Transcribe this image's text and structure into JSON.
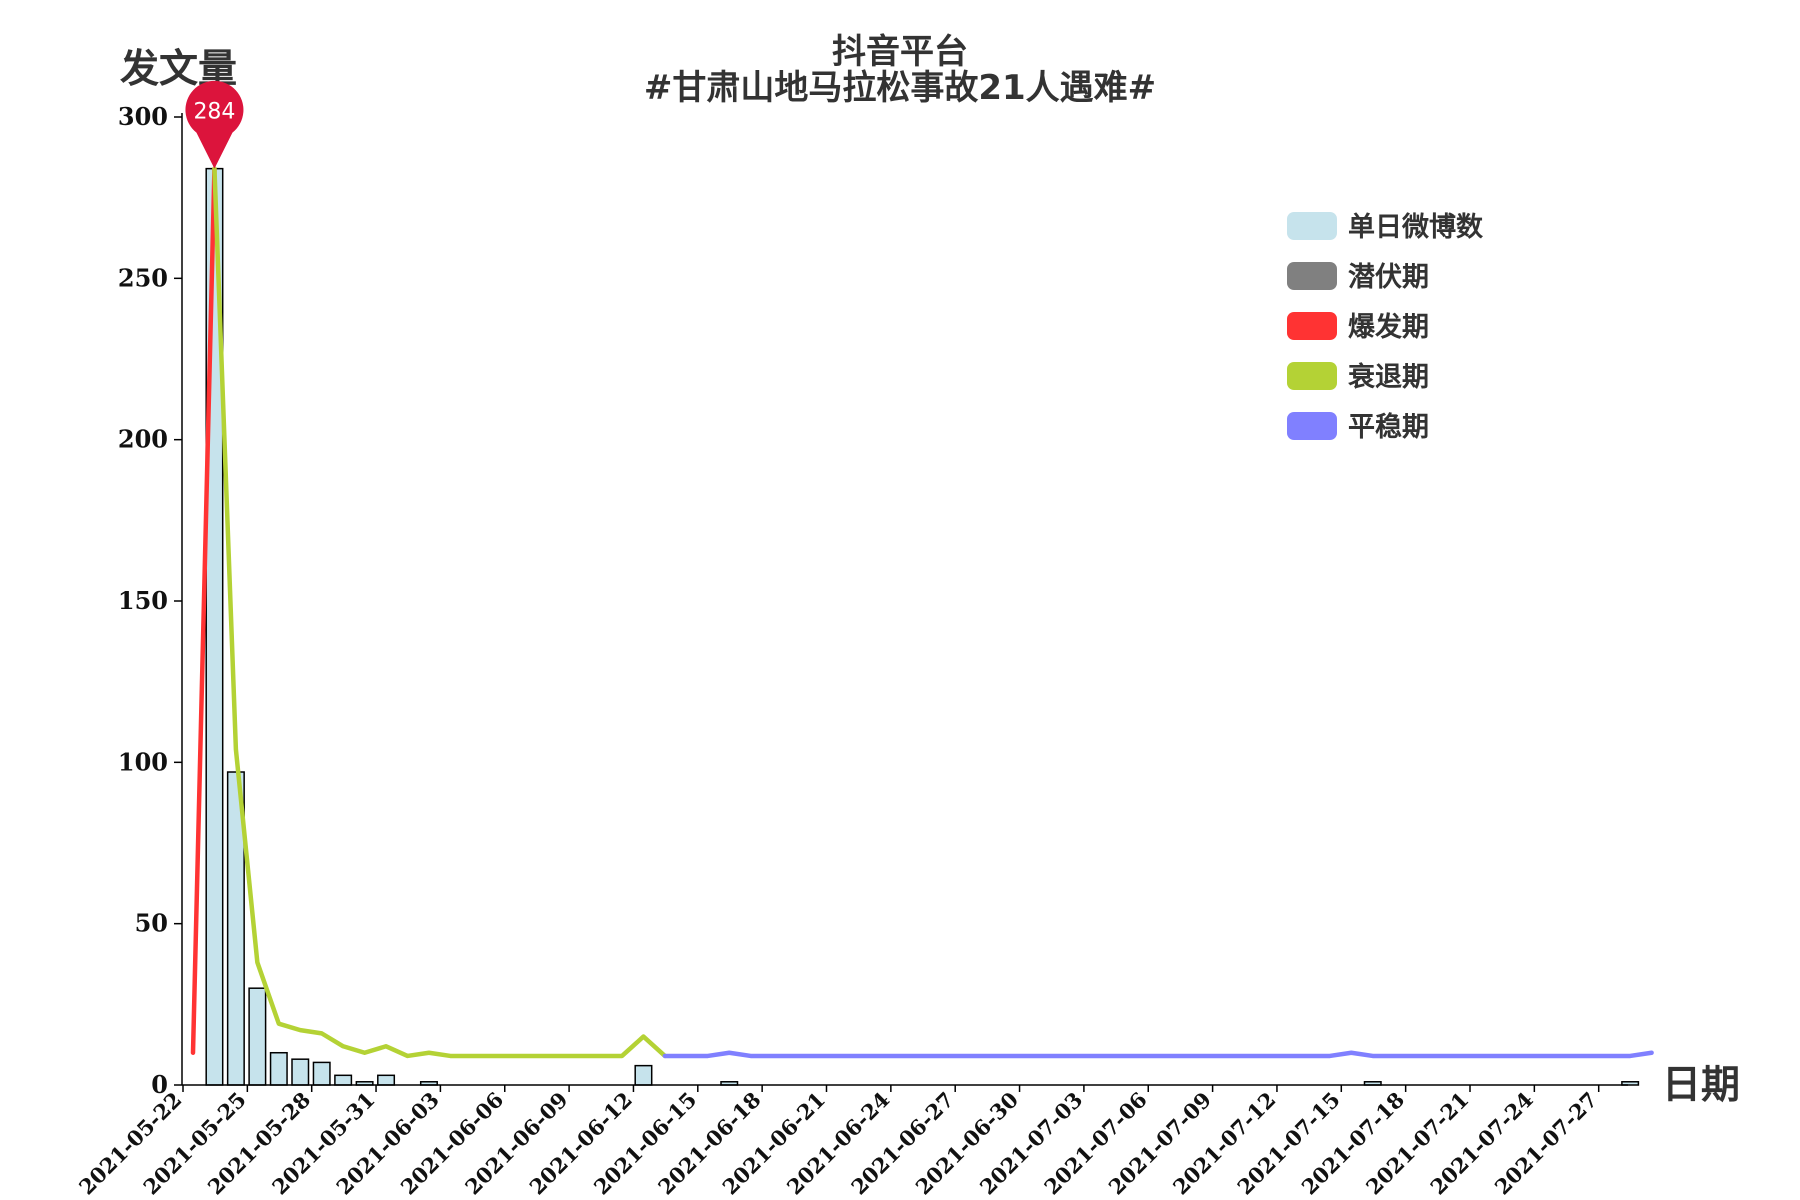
{
  "chart_data": {
    "type": "bar",
    "title": "抖音平台",
    "subtitle": "#甘肃山地马拉松事故21人遇难#",
    "ylabel": "发文量",
    "xlabel": "日期",
    "ylim": [
      0,
      300
    ],
    "yticks": [
      0,
      50,
      100,
      150,
      200,
      250,
      300
    ],
    "x_start": "2021-05-22",
    "x_tick_labels": [
      "2021-05-22",
      "2021-05-25",
      "2021-05-28",
      "2021-05-31",
      "2021-06-03",
      "2021-06-06",
      "2021-06-09",
      "2021-06-12",
      "2021-06-15",
      "2021-06-18",
      "2021-06-21",
      "2021-06-24",
      "2021-06-27",
      "2021-06-30",
      "2021-07-03",
      "2021-07-06",
      "2021-07-09",
      "2021-07-12",
      "2021-07-15",
      "2021-07-18",
      "2021-07-21",
      "2021-07-24",
      "2021-07-27"
    ],
    "bars": {
      "name": "单日微博数",
      "color": "#c6e3ec",
      "dates": [
        "2021-05-23",
        "2021-05-24",
        "2021-05-25",
        "2021-05-26",
        "2021-05-27",
        "2021-05-28",
        "2021-05-29",
        "2021-05-30",
        "2021-05-31",
        "2021-06-01",
        "2021-06-02",
        "2021-06-03",
        "2021-06-04",
        "2021-06-05",
        "2021-06-06",
        "2021-06-07",
        "2021-06-08",
        "2021-06-09",
        "2021-06-10",
        "2021-06-11",
        "2021-06-12",
        "2021-06-13",
        "2021-06-14",
        "2021-06-15",
        "2021-06-16",
        "2021-06-17",
        "2021-06-18",
        "2021-06-19",
        "2021-06-20",
        "2021-06-21",
        "2021-06-22",
        "2021-06-23",
        "2021-06-24",
        "2021-06-25",
        "2021-06-26",
        "2021-06-27",
        "2021-06-28",
        "2021-06-29",
        "2021-06-30",
        "2021-07-01",
        "2021-07-02",
        "2021-07-03",
        "2021-07-04",
        "2021-07-05",
        "2021-07-06",
        "2021-07-07",
        "2021-07-08",
        "2021-07-09",
        "2021-07-10",
        "2021-07-11",
        "2021-07-12",
        "2021-07-13",
        "2021-07-14",
        "2021-07-15",
        "2021-07-16",
        "2021-07-17",
        "2021-07-18",
        "2021-07-19",
        "2021-07-20",
        "2021-07-21",
        "2021-07-22",
        "2021-07-23",
        "2021-07-24",
        "2021-07-25",
        "2021-07-26",
        "2021-07-27",
        "2021-07-28"
      ],
      "values": [
        284,
        97,
        30,
        10,
        8,
        7,
        3,
        1,
        3,
        0,
        1,
        0,
        0,
        0,
        0,
        0,
        0,
        0,
        0,
        0,
        6,
        0,
        0,
        0,
        1,
        0,
        0,
        0,
        0,
        0,
        0,
        0,
        0,
        0,
        0,
        0,
        0,
        0,
        0,
        0,
        0,
        0,
        0,
        0,
        0,
        0,
        0,
        0,
        0,
        0,
        0,
        0,
        0,
        0,
        1,
        0,
        0,
        0,
        0,
        0,
        0,
        0,
        0,
        0,
        0,
        0,
        1
      ]
    },
    "phases": [
      {
        "name": "潜伏期",
        "color": "#808080",
        "dates": [],
        "values": []
      },
      {
        "name": "爆发期",
        "color": "#ff3333",
        "dates": [
          "2021-05-22",
          "2021-05-23"
        ],
        "values": [
          10,
          284
        ]
      },
      {
        "name": "衰退期",
        "color": "#b4d235",
        "dates": [
          "2021-05-23",
          "2021-05-24",
          "2021-05-25",
          "2021-05-26",
          "2021-05-27",
          "2021-05-28",
          "2021-05-29",
          "2021-05-30",
          "2021-05-31",
          "2021-06-01",
          "2021-06-02",
          "2021-06-03",
          "2021-06-04",
          "2021-06-05",
          "2021-06-06",
          "2021-06-07",
          "2021-06-08",
          "2021-06-09",
          "2021-06-10",
          "2021-06-11",
          "2021-06-12",
          "2021-06-13"
        ],
        "values": [
          284,
          104,
          38,
          19,
          17,
          16,
          12,
          10,
          12,
          9,
          10,
          9,
          9,
          9,
          9,
          9,
          9,
          9,
          9,
          9,
          15,
          9
        ]
      },
      {
        "name": "平稳期",
        "color": "#8080ff",
        "dates": [
          "2021-06-13",
          "2021-06-14",
          "2021-06-15",
          "2021-06-16",
          "2021-06-17",
          "2021-06-18",
          "2021-06-19",
          "2021-06-20",
          "2021-06-21",
          "2021-06-22",
          "2021-06-23",
          "2021-06-24",
          "2021-06-25",
          "2021-06-26",
          "2021-06-27",
          "2021-06-28",
          "2021-06-29",
          "2021-06-30",
          "2021-07-01",
          "2021-07-02",
          "2021-07-03",
          "2021-07-04",
          "2021-07-05",
          "2021-07-06",
          "2021-07-07",
          "2021-07-08",
          "2021-07-09",
          "2021-07-10",
          "2021-07-11",
          "2021-07-12",
          "2021-07-13",
          "2021-07-14",
          "2021-07-15",
          "2021-07-16",
          "2021-07-17",
          "2021-07-18",
          "2021-07-19",
          "2021-07-20",
          "2021-07-21",
          "2021-07-22",
          "2021-07-23",
          "2021-07-24",
          "2021-07-25",
          "2021-07-26",
          "2021-07-27",
          "2021-07-28",
          "2021-07-29"
        ],
        "values": [
          9,
          9,
          9,
          10,
          9,
          9,
          9,
          9,
          9,
          9,
          9,
          9,
          9,
          9,
          9,
          9,
          9,
          9,
          9,
          9,
          9,
          9,
          9,
          9,
          9,
          9,
          9,
          9,
          9,
          9,
          9,
          9,
          10,
          9,
          9,
          9,
          9,
          9,
          9,
          9,
          9,
          9,
          9,
          9,
          9,
          9,
          10
        ]
      }
    ],
    "max_marker": {
      "value": 284,
      "label": "284",
      "date": "2021-05-23",
      "color": "#dc143c"
    },
    "legend": [
      "单日微博数",
      "潜伏期",
      "爆发期",
      "衰退期",
      "平稳期"
    ],
    "legend_position": "top-right",
    "grid": false
  }
}
